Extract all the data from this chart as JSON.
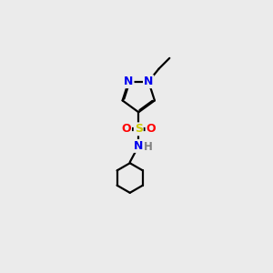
{
  "background_color": "#ebebeb",
  "atom_colors": {
    "N": "#0000ee",
    "O": "#ff0000",
    "S": "#cccc00",
    "C": "#000000",
    "H": "#808080"
  },
  "bond_color": "#000000",
  "figsize": [
    3.0,
    3.0
  ],
  "dpi": 100,
  "lw": 1.6
}
